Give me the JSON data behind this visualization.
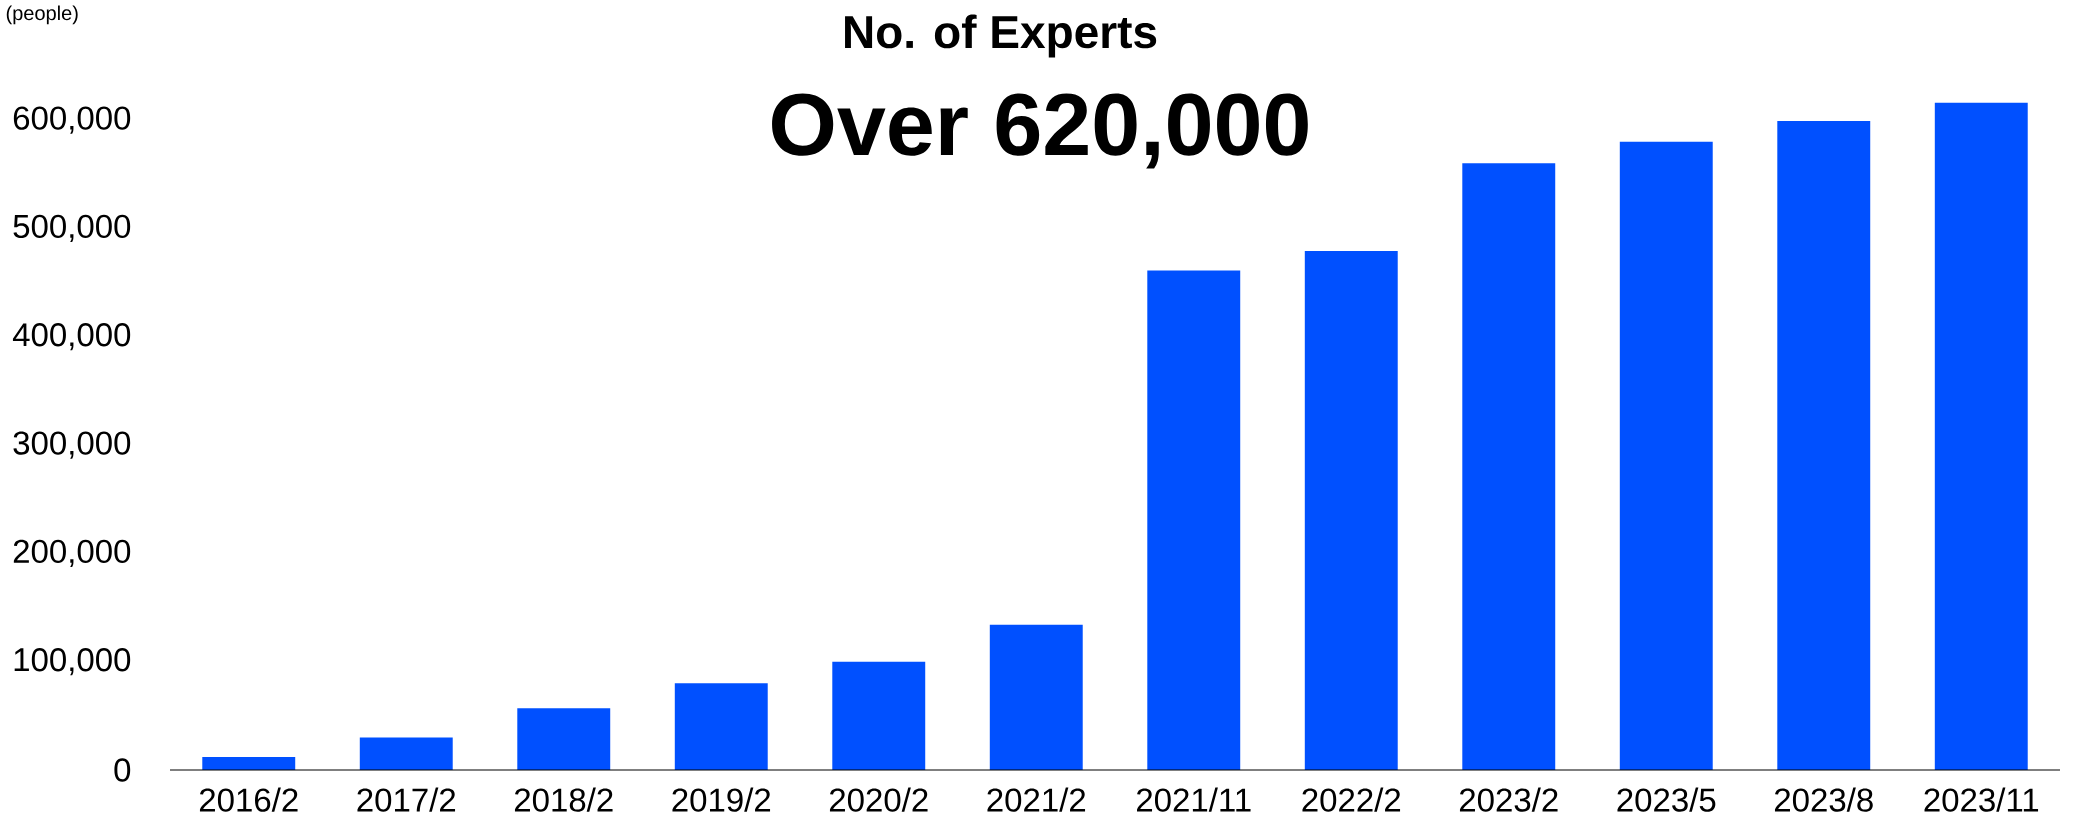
{
  "chart_data": {
    "type": "bar",
    "title": "No. of Experts",
    "subtitle": "Over 620,000",
    "ylabel": "(people)",
    "categories": [
      "2016/2",
      "2017/2",
      "2018/2",
      "2019/2",
      "2020/2",
      "2021/2",
      "2021/11",
      "2022/2",
      "2023/2",
      "2023/5",
      "2023/8",
      "2023/11"
    ],
    "values": [
      12000,
      30000,
      57000,
      80000,
      100000,
      134000,
      461000,
      479000,
      560000,
      580000,
      599000,
      616000
    ],
    "color": "#0050ff",
    "ylim": [
      0,
      616000
    ],
    "yticks": [
      {
        "value": 0,
        "label": "0"
      },
      {
        "value": 100000,
        "label": "100,000"
      },
      {
        "value": 200000,
        "label": "200,000"
      },
      {
        "value": 300000,
        "label": "300,000"
      },
      {
        "value": 400000,
        "label": "400,000"
      },
      {
        "value": 500000,
        "label": "500,000"
      },
      {
        "value": 600000,
        "label": "600,000"
      }
    ],
    "grid": false
  }
}
